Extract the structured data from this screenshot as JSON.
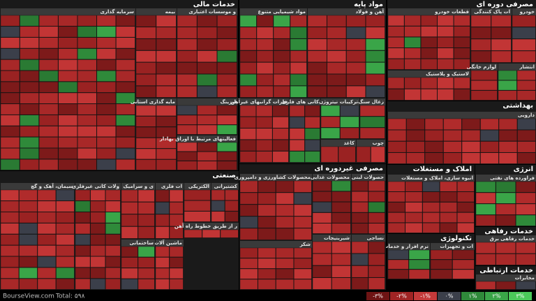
{
  "sectors": [
    {
      "title": "خدمات مالی",
      "groups": [
        "سرمایه گذاری",
        "بیمه",
        "و موسسات اعتباری",
        "مایه گذاری استانی",
        "لیزینگ",
        "فعالیتهای مرتبط با اوراق بهادار"
      ]
    },
    {
      "title": "مواد پایه",
      "groups": [
        "مواد شیمیایی متنوع",
        "آهن و فولاد",
        "فلزات گرانبهای غیرآهن",
        "کانی های فلزی",
        "ترکیبات نیتروژن",
        "زغال سنگ",
        "کاغذ",
        "چوب"
      ]
    },
    {
      "title": "مصرفی دوره ای",
      "groups": [
        "قطعات خودرو",
        "ات پاک کنندگی",
        "خودرو",
        "لاستیک و پلاستیک",
        "لوازم خانگی",
        "انتشار"
      ]
    },
    {
      "title": "بهداشتی",
      "groups": [
        "دارویی"
      ]
    },
    {
      "title": "املاک و مستغلات",
      "groups": [
        "انبوه سازی، املاک و مستغلات"
      ]
    },
    {
      "title": "انرژی",
      "groups": [
        "فراورده های نفتی"
      ]
    },
    {
      "title": "تکنولوژی",
      "groups": [
        "نرم افزار و خدمات",
        "ات و تجهیزات"
      ]
    },
    {
      "title": "خدمات رفاهی",
      "groups": [
        "خدمات رفاهی برق"
      ]
    },
    {
      "title": "خدمات ارتباطی",
      "groups": [
        "مخابرات"
      ]
    },
    {
      "title": "صنعتی",
      "groups": [
        "سیمان، آهک و گچ",
        "ولات کانی غیرفلزی",
        "ی و سرامیک",
        "ات فلزی",
        "الکتریکی",
        "کشتیرانی",
        "ر از طریق خطوط راه آهن",
        "ماشین آلات",
        "ساختمانی"
      ]
    },
    {
      "title": "مصرفی غیردوره ای",
      "groups": [
        "محصولات کشاورزی و دامپروری",
        "محصولات غذایی",
        "حصولات لبنی",
        "شکر",
        "شیرینیجات",
        "نساجی"
      ]
    }
  ],
  "legend": [
    "-۳%",
    "-۲%",
    "-۱%",
    "۰%",
    "۱%",
    "۲%",
    "۳%"
  ],
  "footer": {
    "site": "BourseView.com",
    "total": "Total: ۵۹۸"
  }
}
